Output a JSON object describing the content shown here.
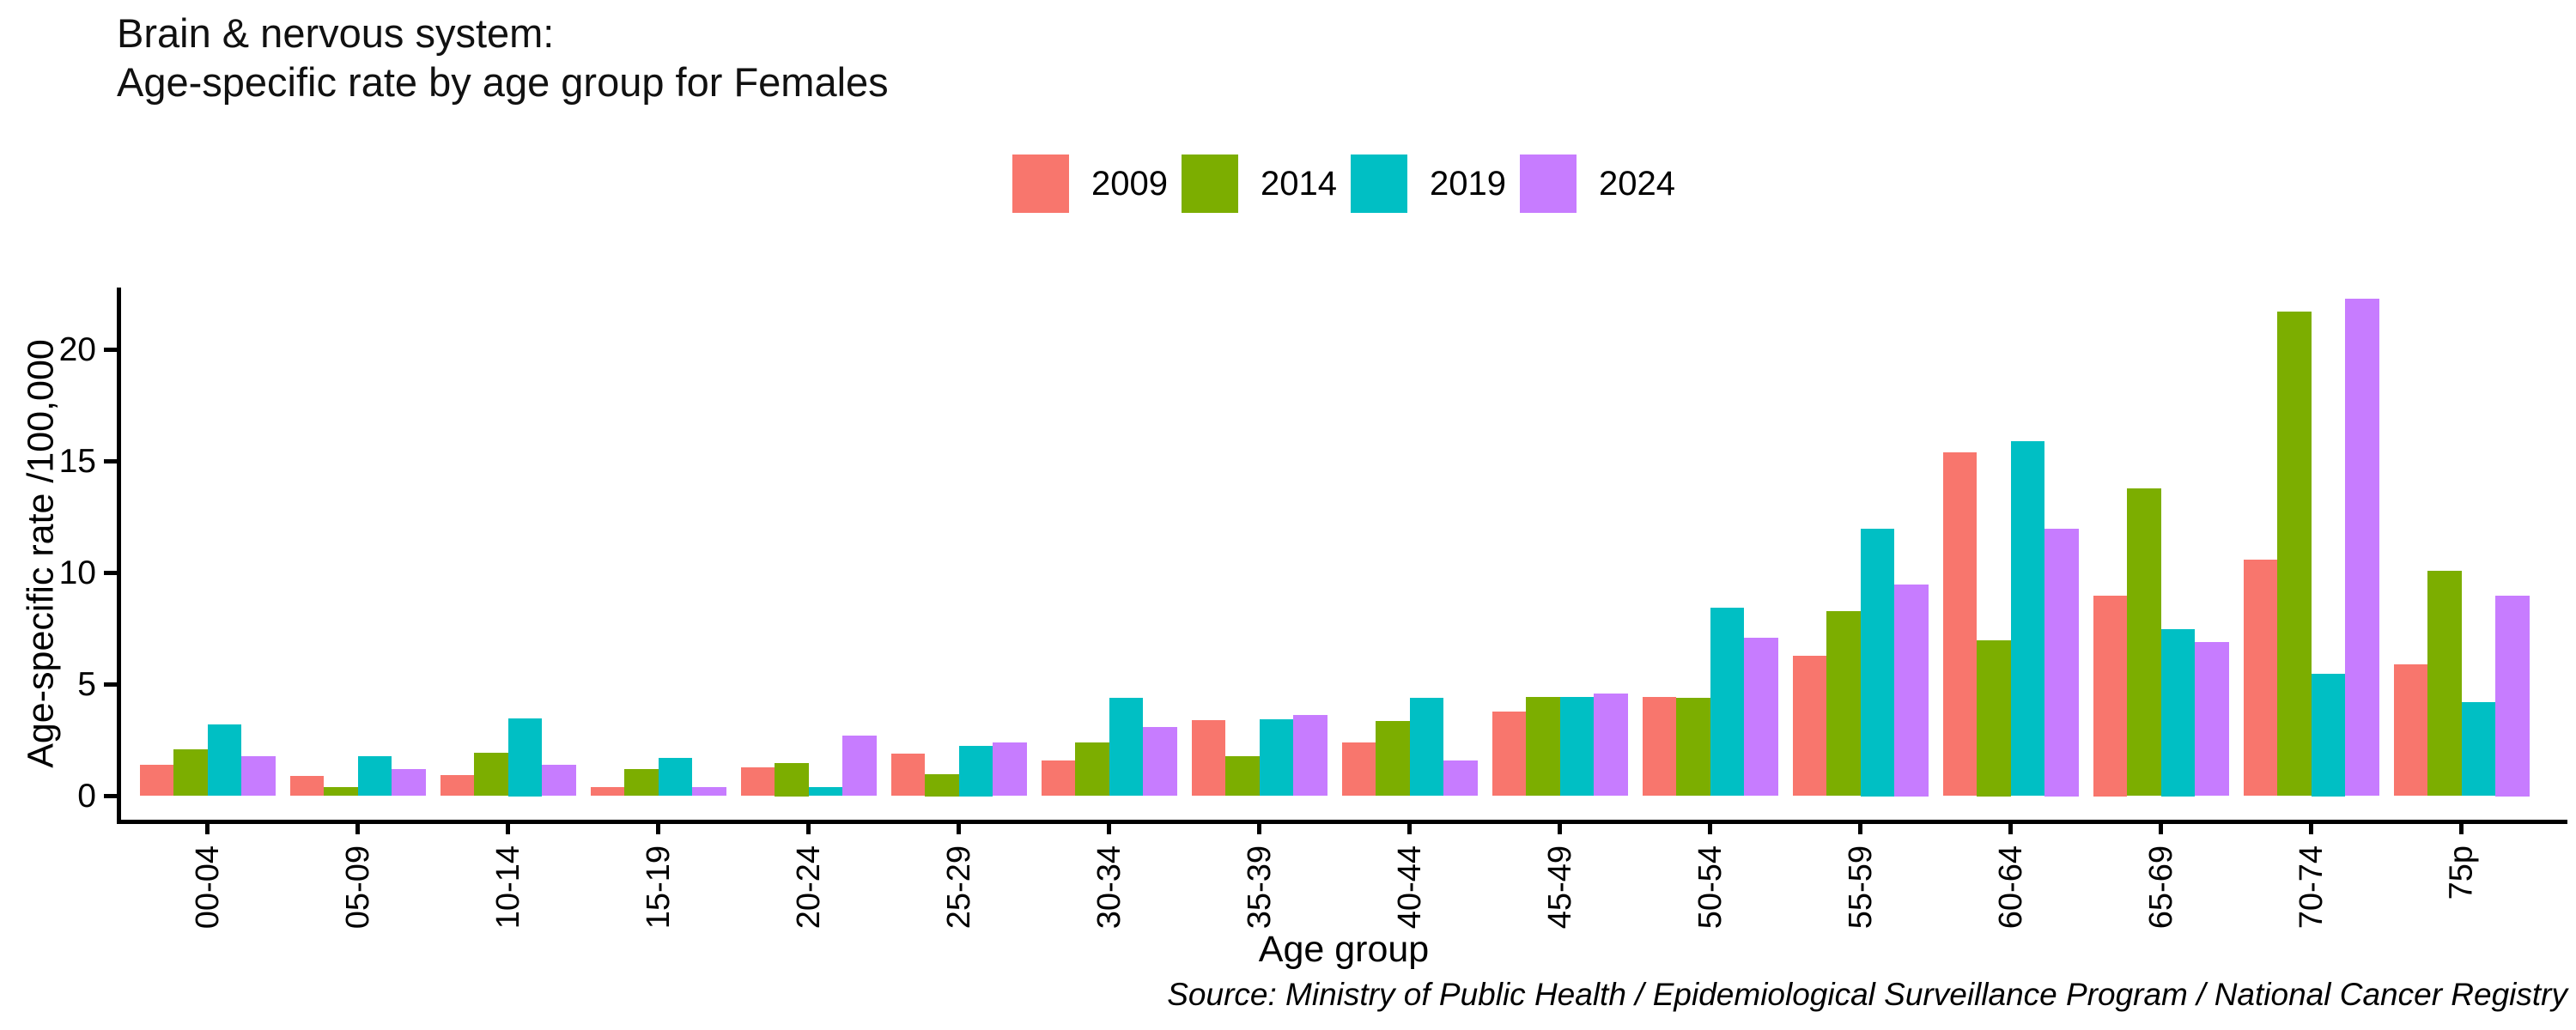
{
  "title": {
    "line1": "Brain & nervous system:",
    "line2": "Age-specific rate by age group for Females"
  },
  "axes": {
    "y_label": "Age-specific rate /100,000",
    "x_label": "Age group",
    "y_ticks": [
      "0",
      "5",
      "10",
      "15",
      "20"
    ]
  },
  "source": "Source: Ministry of Public Health / Epidemiological Surveillance Program / National Cancer Registry",
  "legend": [
    {
      "label": "2009",
      "color": "#F8766D"
    },
    {
      "label": "2014",
      "color": "#7CAE00"
    },
    {
      "label": "2019",
      "color": "#00BFC4"
    },
    {
      "label": "2024",
      "color": "#C77CFF"
    }
  ],
  "chart_data": {
    "type": "bar",
    "title": "Brain & nervous system: Age-specific rate by age group for Females",
    "xlabel": "Age group",
    "ylabel": "Age-specific rate /100,000",
    "ylim": [
      0,
      22.8
    ],
    "grid": false,
    "legend_position": "top-center",
    "categories": [
      "00-04",
      "05-09",
      "10-14",
      "15-19",
      "20-24",
      "25-29",
      "30-34",
      "35-39",
      "40-44",
      "45-49",
      "50-54",
      "55-59",
      "60-64",
      "65-69",
      "70-74",
      "75p"
    ],
    "series": [
      {
        "name": "2009",
        "color": "#F8766D",
        "values": [
          1.4,
          0.9,
          0.95,
          0.4,
          1.3,
          1.9,
          1.6,
          3.4,
          2.4,
          3.8,
          4.45,
          6.3,
          15.4,
          9.0,
          10.6,
          5.9
        ]
      },
      {
        "name": "2014",
        "color": "#7CAE00",
        "values": [
          2.1,
          0.4,
          1.95,
          1.2,
          1.5,
          1.0,
          2.4,
          1.8,
          3.35,
          4.45,
          4.4,
          8.3,
          7.0,
          13.8,
          21.7,
          10.1
        ]
      },
      {
        "name": "2019",
        "color": "#00BFC4",
        "values": [
          3.2,
          1.8,
          3.5,
          1.7,
          0.4,
          2.25,
          4.4,
          3.45,
          4.4,
          4.45,
          8.45,
          12.0,
          15.9,
          7.5,
          5.5,
          4.2
        ]
      },
      {
        "name": "2024",
        "color": "#C77CFF",
        "values": [
          1.8,
          1.2,
          1.4,
          0.4,
          2.7,
          2.4,
          3.1,
          3.65,
          1.6,
          4.6,
          7.1,
          9.5,
          12.0,
          6.9,
          22.3,
          9.0
        ]
      }
    ]
  }
}
